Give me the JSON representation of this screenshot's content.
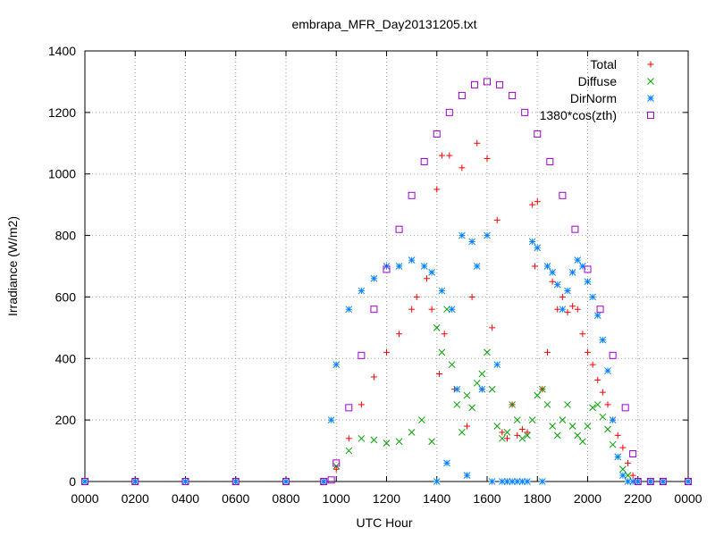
{
  "chart_data": {
    "type": "scatter",
    "title": "embrapa_MFR_Day20131205.txt",
    "xlabel": "UTC Hour",
    "ylabel": "Irradiance (W/m2)",
    "xlim": [
      0,
      2400
    ],
    "ylim": [
      0,
      1400
    ],
    "x_ticks": [
      "0000",
      "0200",
      "0400",
      "0600",
      "0800",
      "1000",
      "1200",
      "1400",
      "1600",
      "1800",
      "2000",
      "2200",
      "0000"
    ],
    "y_ticks": [
      "0",
      "200",
      "400",
      "600",
      "800",
      "1000",
      "1200",
      "1400"
    ],
    "grid": true,
    "legend_position": "top-right",
    "series": [
      {
        "name": "Total",
        "marker": "plus",
        "color": "#ff0000",
        "x": [
          0,
          200,
          400,
          600,
          800,
          950,
          1000,
          1050,
          1100,
          1150,
          1200,
          1250,
          1300,
          1320,
          1360,
          1380,
          1400,
          1410,
          1420,
          1430,
          1450,
          1470,
          1500,
          1520,
          1540,
          1560,
          1580,
          1600,
          1620,
          1640,
          1660,
          1680,
          1700,
          1720,
          1740,
          1760,
          1780,
          1790,
          1800,
          1820,
          1840,
          1860,
          1880,
          1900,
          1920,
          1940,
          1960,
          1980,
          2000,
          2020,
          2040,
          2060,
          2080,
          2100,
          2120,
          2140,
          2160,
          2180,
          2200,
          2250,
          2300,
          2400
        ],
        "y": [
          0,
          0,
          0,
          0,
          0,
          0,
          40,
          140,
          250,
          340,
          420,
          480,
          560,
          600,
          660,
          560,
          950,
          350,
          1060,
          480,
          1060,
          300,
          1020,
          180,
          600,
          1100,
          300,
          1050,
          500,
          850,
          160,
          140,
          250,
          150,
          170,
          160,
          900,
          700,
          910,
          300,
          420,
          650,
          560,
          600,
          550,
          570,
          560,
          480,
          420,
          380,
          330,
          290,
          250,
          200,
          150,
          110,
          60,
          20,
          0,
          0,
          0,
          0
        ]
      },
      {
        "name": "Diffuse",
        "marker": "cross",
        "color": "#00a000",
        "x": [
          0,
          200,
          400,
          600,
          800,
          950,
          1000,
          1050,
          1100,
          1150,
          1200,
          1250,
          1300,
          1340,
          1380,
          1400,
          1420,
          1440,
          1460,
          1480,
          1500,
          1520,
          1540,
          1560,
          1580,
          1600,
          1620,
          1640,
          1660,
          1680,
          1700,
          1720,
          1740,
          1760,
          1780,
          1800,
          1820,
          1840,
          1860,
          1880,
          1900,
          1920,
          1940,
          1960,
          1980,
          2000,
          2020,
          2040,
          2060,
          2080,
          2100,
          2120,
          2140,
          2160,
          2200,
          2250,
          2300,
          2400
        ],
        "y": [
          0,
          0,
          0,
          0,
          0,
          0,
          50,
          100,
          140,
          135,
          125,
          130,
          160,
          200,
          130,
          500,
          420,
          560,
          380,
          250,
          160,
          280,
          240,
          320,
          350,
          420,
          300,
          180,
          140,
          160,
          250,
          200,
          140,
          150,
          200,
          280,
          300,
          250,
          180,
          150,
          200,
          250,
          180,
          150,
          130,
          180,
          240,
          250,
          210,
          170,
          120,
          80,
          40,
          20,
          0,
          0,
          0,
          0
        ]
      },
      {
        "name": "DirNorm",
        "marker": "asterisk",
        "color": "#0080ff",
        "x": [
          0,
          200,
          400,
          600,
          800,
          950,
          980,
          1000,
          1050,
          1100,
          1150,
          1200,
          1250,
          1300,
          1350,
          1380,
          1400,
          1420,
          1440,
          1460,
          1480,
          1500,
          1520,
          1540,
          1560,
          1580,
          1600,
          1620,
          1640,
          1660,
          1680,
          1700,
          1720,
          1740,
          1760,
          1780,
          1800,
          1820,
          1840,
          1860,
          1880,
          1900,
          1920,
          1940,
          1960,
          1980,
          2000,
          2020,
          2040,
          2060,
          2080,
          2100,
          2120,
          2140,
          2160,
          2180,
          2200,
          2250,
          2300,
          2400
        ],
        "y": [
          0,
          0,
          0,
          0,
          0,
          0,
          200,
          380,
          560,
          620,
          660,
          700,
          700,
          720,
          700,
          680,
          0,
          620,
          60,
          560,
          300,
          800,
          20,
          780,
          700,
          300,
          800,
          0,
          380,
          0,
          0,
          0,
          0,
          0,
          0,
          780,
          760,
          0,
          700,
          680,
          640,
          560,
          620,
          680,
          720,
          700,
          650,
          600,
          540,
          460,
          360,
          200,
          80,
          20,
          0,
          0,
          0,
          0,
          0,
          0
        ]
      },
      {
        "name": "1380*cos(zth)",
        "marker": "square",
        "color": "#a000d0",
        "x": [
          0,
          200,
          400,
          600,
          800,
          950,
          980,
          1000,
          1050,
          1100,
          1150,
          1200,
          1250,
          1300,
          1350,
          1400,
          1450,
          1500,
          1550,
          1600,
          1650,
          1700,
          1750,
          1800,
          1850,
          1900,
          1950,
          2000,
          2050,
          2100,
          2150,
          2180,
          2200,
          2250,
          2300,
          2400
        ],
        "y": [
          0,
          0,
          0,
          0,
          0,
          0,
          5,
          60,
          240,
          410,
          560,
          690,
          820,
          930,
          1040,
          1130,
          1200,
          1255,
          1290,
          1300,
          1290,
          1255,
          1200,
          1130,
          1040,
          930,
          820,
          690,
          560,
          410,
          240,
          90,
          0,
          0,
          0,
          0
        ]
      }
    ]
  }
}
